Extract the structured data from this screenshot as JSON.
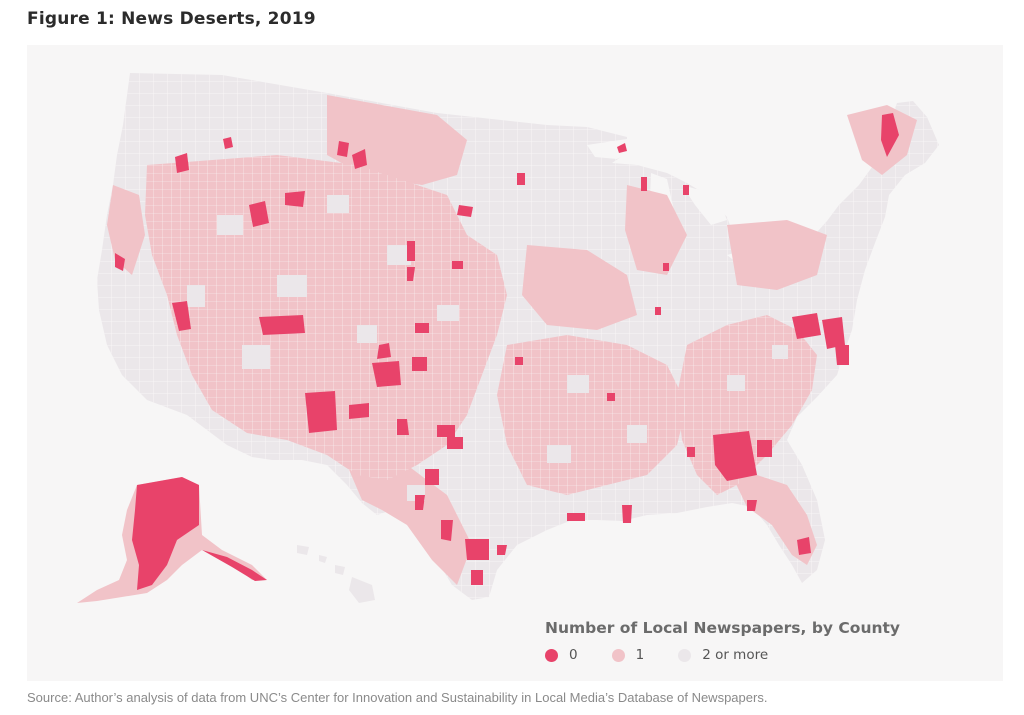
{
  "figure": {
    "title": "Figure 1: News Deserts, 2019",
    "source": "Source: Author’s analysis of data from UNC’s Center for Innovation and Sustainability in Local Media’s Database of Newspapers."
  },
  "legend": {
    "title": "Number of Local Newspapers, by County",
    "items": [
      {
        "label": "0",
        "color": "#e8436a"
      },
      {
        "label": "1",
        "color": "#f1c3c8"
      },
      {
        "label": "2 or more",
        "color": "#ebe7ea"
      }
    ]
  },
  "colors": {
    "panel_background": "#f7f6f6",
    "none": "#e8436a",
    "one": "#f1c3c8",
    "two_or_more": "#ebe7ea"
  }
}
